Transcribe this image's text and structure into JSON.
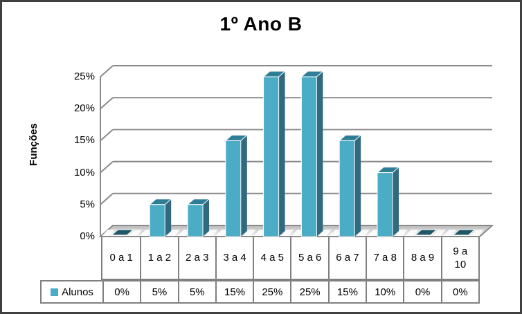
{
  "chart_data": {
    "type": "bar",
    "style": "3d-column",
    "title": "1º Ano B",
    "xlabel": "",
    "ylabel": "Funções",
    "categories": [
      "0 a 1",
      "1 a 2",
      "2 a 3",
      "3 a 4",
      "4 a 5",
      "5 a 6",
      "6 a 7",
      "7 a 8",
      "8 a 9",
      "9 a 10"
    ],
    "series": [
      {
        "name": "Alunos",
        "values": [
          0,
          5,
          5,
          15,
          25,
          25,
          15,
          10,
          0,
          0
        ]
      }
    ],
    "y_ticks": [
      "0%",
      "5%",
      "10%",
      "15%",
      "20%",
      "25%"
    ],
    "ylim": [
      0,
      25
    ],
    "y_tick_step": 5,
    "grid": true,
    "legend_position": "bottom-table",
    "colors": {
      "bar_front": "#4BACC6",
      "bar_side": "#31697E",
      "bar_top": "#2E7E97",
      "bar_zero": "#1F5766",
      "bar_edge": "#FFFFFF",
      "wall_line": "#8A8A8A",
      "floor_back": "#B8B8B8",
      "floor_front": "#F4F4F4",
      "text": "#000000"
    }
  },
  "table": {
    "legend_label": "Alunos",
    "header_cells": [
      "0 a 1",
      "1 a 2",
      "2 a 3",
      "3 a 4",
      "4 a 5",
      "5 a 6",
      "6 a 7",
      "7 a 8",
      "8 a 9",
      "9 a\n10"
    ],
    "value_cells": [
      "0%",
      "5%",
      "5%",
      "15%",
      "25%",
      "25%",
      "15%",
      "10%",
      "0%",
      "0%"
    ]
  },
  "frame": {
    "border_color": "#404040",
    "background": "#FFFFFF"
  }
}
